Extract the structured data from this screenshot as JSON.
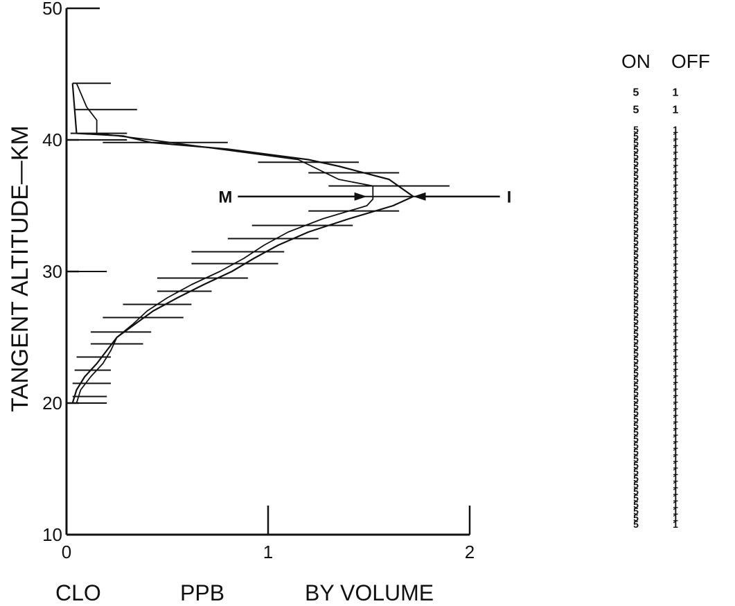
{
  "chart_data": {
    "type": "line",
    "title": "",
    "xlabel_parts": [
      "CLO",
      "PPB",
      "BY VOLUME"
    ],
    "ylabel": "TANGENT ALTITUDE—KM",
    "xlim": [
      0,
      2
    ],
    "ylim": [
      10,
      50
    ],
    "x_ticks": [
      0,
      1,
      2
    ],
    "y_ticks": [
      10,
      20,
      30,
      40,
      50
    ],
    "grid": false,
    "series": [
      {
        "name": "M",
        "points": [
          [
            0.05,
            20.0
          ],
          [
            0.07,
            21.0
          ],
          [
            0.12,
            22.0
          ],
          [
            0.18,
            23.0
          ],
          [
            0.22,
            24.0
          ],
          [
            0.25,
            25.0
          ],
          [
            0.33,
            26.0
          ],
          [
            0.4,
            27.0
          ],
          [
            0.5,
            28.0
          ],
          [
            0.62,
            29.0
          ],
          [
            0.76,
            30.0
          ],
          [
            0.88,
            31.0
          ],
          [
            0.98,
            32.0
          ],
          [
            1.1,
            33.0
          ],
          [
            1.27,
            34.0
          ],
          [
            1.49,
            35.0
          ],
          [
            1.52,
            35.5
          ],
          [
            1.52,
            36.5
          ],
          [
            1.35,
            37.0
          ],
          [
            1.15,
            38.5
          ],
          [
            0.42,
            40.0
          ],
          [
            0.15,
            40.5
          ],
          [
            0.15,
            41.5
          ],
          [
            0.1,
            42.5
          ],
          [
            0.05,
            44.3
          ]
        ]
      },
      {
        "name": "I",
        "points": [
          [
            0.03,
            20.0
          ],
          [
            0.05,
            21.0
          ],
          [
            0.09,
            22.0
          ],
          [
            0.15,
            23.0
          ],
          [
            0.2,
            24.0
          ],
          [
            0.25,
            25.0
          ],
          [
            0.34,
            26.0
          ],
          [
            0.43,
            27.0
          ],
          [
            0.55,
            28.0
          ],
          [
            0.68,
            29.0
          ],
          [
            0.82,
            30.0
          ],
          [
            0.93,
            31.0
          ],
          [
            1.05,
            32.0
          ],
          [
            1.2,
            33.0
          ],
          [
            1.4,
            34.0
          ],
          [
            1.62,
            35.0
          ],
          [
            1.72,
            35.7
          ],
          [
            1.6,
            37.0
          ],
          [
            1.35,
            38.0
          ],
          [
            1.2,
            38.5
          ],
          [
            0.8,
            39.3
          ],
          [
            0.42,
            39.8
          ],
          [
            0.28,
            40.3
          ],
          [
            0.05,
            40.5
          ],
          [
            0.03,
            44.3
          ]
        ]
      }
    ],
    "error_bars": [
      {
        "y": 44.3,
        "xmin": 0.03,
        "xmax": 0.22
      },
      {
        "y": 42.3,
        "xmin": 0.04,
        "xmax": 0.35
      },
      {
        "y": 40.5,
        "xmin": 0.02,
        "xmax": 0.3
      },
      {
        "y": 40.0,
        "xmin": 0.02,
        "xmax": 0.3
      },
      {
        "y": 39.8,
        "xmin": 0.18,
        "xmax": 0.8
      },
      {
        "y": 38.3,
        "xmin": 0.95,
        "xmax": 1.45
      },
      {
        "y": 37.5,
        "xmin": 1.2,
        "xmax": 1.65
      },
      {
        "y": 36.5,
        "xmin": 1.3,
        "xmax": 1.9
      },
      {
        "y": 35.7,
        "xmin": 1.3,
        "xmax": 1.8
      },
      {
        "y": 34.6,
        "xmin": 1.2,
        "xmax": 1.65
      },
      {
        "y": 33.5,
        "xmin": 0.92,
        "xmax": 1.42
      },
      {
        "y": 32.5,
        "xmin": 0.8,
        "xmax": 1.25
      },
      {
        "y": 31.5,
        "xmin": 0.62,
        "xmax": 1.08
      },
      {
        "y": 30.6,
        "xmin": 0.62,
        "xmax": 1.05
      },
      {
        "y": 30.0,
        "xmin": 0.05,
        "xmax": 0.2
      },
      {
        "y": 29.5,
        "xmin": 0.45,
        "xmax": 0.9
      },
      {
        "y": 28.5,
        "xmin": 0.45,
        "xmax": 0.72
      },
      {
        "y": 27.5,
        "xmin": 0.28,
        "xmax": 0.62
      },
      {
        "y": 26.5,
        "xmin": 0.18,
        "xmax": 0.58
      },
      {
        "y": 25.4,
        "xmin": 0.12,
        "xmax": 0.42
      },
      {
        "y": 24.5,
        "xmin": 0.12,
        "xmax": 0.38
      },
      {
        "y": 23.5,
        "xmin": 0.05,
        "xmax": 0.22
      },
      {
        "y": 22.5,
        "xmin": 0.04,
        "xmax": 0.22
      },
      {
        "y": 21.5,
        "xmin": 0.03,
        "xmax": 0.22
      },
      {
        "y": 20.5,
        "xmin": 0.03,
        "xmax": 0.2
      },
      {
        "y": 20.0,
        "xmin": 0.03,
        "xmax": 0.2
      }
    ],
    "annotations": [
      {
        "label": "M",
        "x_tail": 0.85,
        "x_head": 1.49,
        "y": 35.7
      },
      {
        "label": "I",
        "x_tail": 2.15,
        "x_head": 1.72,
        "y": 35.7
      }
    ]
  },
  "on_off_table": {
    "headers": [
      "ON",
      "OFF"
    ],
    "rows": [
      {
        "on": "5",
        "off": "1",
        "y": 43.6
      },
      {
        "on": "5",
        "off": "1",
        "y": 42.3
      },
      {
        "on": "5",
        "off": "1",
        "y": 40.8
      },
      {
        "on": "5",
        "off": "1",
        "y": 40.3
      },
      {
        "on": "5",
        "off": "1",
        "y": 39.8
      },
      {
        "on": "5",
        "off": "1",
        "y": 39.3
      },
      {
        "on": "5",
        "off": "1",
        "y": 38.8
      },
      {
        "on": "5",
        "off": "1",
        "y": 38.3
      },
      {
        "on": "5",
        "off": "1",
        "y": 37.8
      },
      {
        "on": "5",
        "off": "1",
        "y": 37.3
      },
      {
        "on": "5",
        "off": "1",
        "y": 36.8
      },
      {
        "on": "5",
        "off": "1",
        "y": 36.3
      },
      {
        "on": "5",
        "off": "1",
        "y": 35.8
      },
      {
        "on": "5",
        "off": "1",
        "y": 35.3
      },
      {
        "on": "5",
        "off": "1",
        "y": 34.8
      },
      {
        "on": "5",
        "off": "1",
        "y": 34.3
      },
      {
        "on": "5",
        "off": "1",
        "y": 33.8
      },
      {
        "on": "5",
        "off": "1",
        "y": 33.3
      },
      {
        "on": "5",
        "off": "1",
        "y": 32.8
      },
      {
        "on": "5",
        "off": "1",
        "y": 32.3
      },
      {
        "on": "5",
        "off": "1",
        "y": 31.8
      },
      {
        "on": "5",
        "off": "1",
        "y": 31.3
      },
      {
        "on": "5",
        "off": "1",
        "y": 30.8
      },
      {
        "on": "5",
        "off": "1",
        "y": 30.3
      },
      {
        "on": "5",
        "off": "1",
        "y": 29.8
      },
      {
        "on": "5",
        "off": "1",
        "y": 29.3
      },
      {
        "on": "5",
        "off": "1",
        "y": 28.8
      },
      {
        "on": "5",
        "off": "1",
        "y": 28.3
      },
      {
        "on": "5",
        "off": "1",
        "y": 27.8
      },
      {
        "on": "5",
        "off": "1",
        "y": 27.3
      },
      {
        "on": "5",
        "off": "1",
        "y": 26.8
      },
      {
        "on": "5",
        "off": "1",
        "y": 26.3
      },
      {
        "on": "5",
        "off": "1",
        "y": 25.8
      },
      {
        "on": "5",
        "off": "1",
        "y": 25.3
      },
      {
        "on": "5",
        "off": "1",
        "y": 24.8
      },
      {
        "on": "5",
        "off": "1",
        "y": 24.3
      },
      {
        "on": "5",
        "off": "1",
        "y": 23.8
      },
      {
        "on": "5",
        "off": "1",
        "y": 23.3
      },
      {
        "on": "5",
        "off": "1",
        "y": 22.8
      },
      {
        "on": "5",
        "off": "1",
        "y": 22.3
      },
      {
        "on": "5",
        "off": "1",
        "y": 21.8
      },
      {
        "on": "5",
        "off": "1",
        "y": 21.3
      },
      {
        "on": "5",
        "off": "1",
        "y": 20.8
      },
      {
        "on": "5",
        "off": "1",
        "y": 20.3
      },
      {
        "on": "5",
        "off": "1",
        "y": 19.8
      },
      {
        "on": "5",
        "off": "1",
        "y": 19.3
      },
      {
        "on": "5",
        "off": "1",
        "y": 18.8
      },
      {
        "on": "5",
        "off": "1",
        "y": 18.3
      },
      {
        "on": "5",
        "off": "1",
        "y": 17.8
      },
      {
        "on": "5",
        "off": "1",
        "y": 17.3
      },
      {
        "on": "5",
        "off": "1",
        "y": 16.8
      },
      {
        "on": "5",
        "off": "1",
        "y": 16.3
      },
      {
        "on": "5",
        "off": "1",
        "y": 15.8
      },
      {
        "on": "5",
        "off": "1",
        "y": 15.3
      },
      {
        "on": "5",
        "off": "1",
        "y": 14.8
      },
      {
        "on": "5",
        "off": "1",
        "y": 14.3
      },
      {
        "on": "5",
        "off": "1",
        "y": 13.8
      },
      {
        "on": "5",
        "off": "1",
        "y": 13.3
      },
      {
        "on": "5",
        "off": "1",
        "y": 12.8
      },
      {
        "on": "5",
        "off": "1",
        "y": 12.3
      },
      {
        "on": "5",
        "off": "1",
        "y": 11.8
      },
      {
        "on": "5",
        "off": "1",
        "y": 11.3
      },
      {
        "on": "5",
        "off": "1",
        "y": 10.8
      }
    ]
  },
  "colors": {
    "ink": "#111111",
    "background": "#ffffff"
  }
}
